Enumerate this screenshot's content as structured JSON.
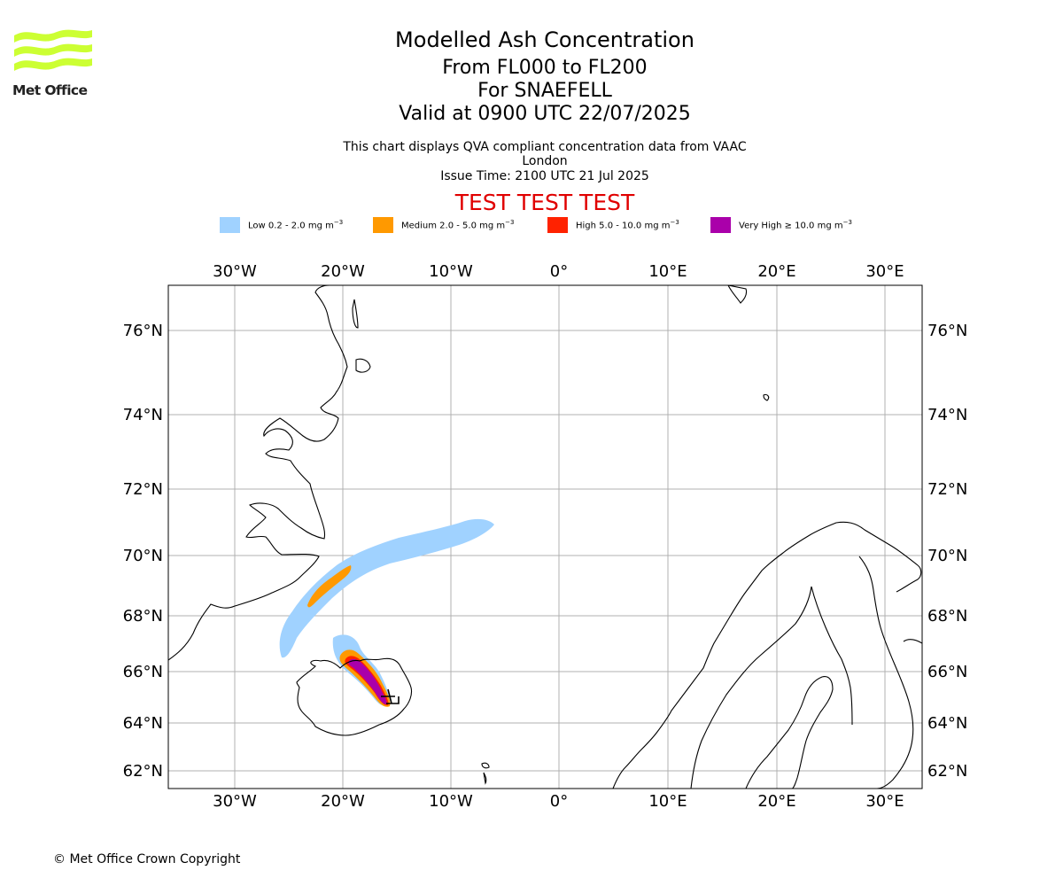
{
  "logo": {
    "brand_text": "Met Office",
    "accent_color": "#ccff33"
  },
  "title": {
    "main": "Modelled Ash Concentration",
    "level": "From FL000 to FL200",
    "volcano": "For SNAEFELL",
    "valid": "Valid at 0900 UTC 22/07/2025"
  },
  "subtitle": "This chart displays QVA compliant concentration data from VAAC London",
  "issue_time": "Issue Time: 2100 UTC 21 Jul 2025",
  "test_banner": "TEST TEST TEST",
  "legend": [
    {
      "label": "Low 0.2 - 2.0 mg m",
      "exp": "−3",
      "color": "#a0d2ff"
    },
    {
      "label": "Medium 2.0 - 5.0 mg m",
      "exp": "−3",
      "color": "#ff9900"
    },
    {
      "label": "High 5.0 - 10.0 mg m",
      "exp": "−3",
      "color": "#ff2200"
    },
    {
      "label": "Very High ≥ 10.0 mg m",
      "exp": "−3",
      "color": "#aa00aa"
    }
  ],
  "map": {
    "lon_ticks": [
      "30°W",
      "20°W",
      "10°W",
      "0°",
      "10°E",
      "20°E",
      "30°E"
    ],
    "lat_ticks": [
      "76°N",
      "74°N",
      "72°N",
      "70°N",
      "68°N",
      "66°N",
      "64°N",
      "62°N"
    ],
    "volcano_marker": "Snaefell",
    "colors": {
      "grid": "#b0b0b0",
      "coast": "#000000"
    }
  },
  "copyright": "© Met Office Crown Copyright"
}
